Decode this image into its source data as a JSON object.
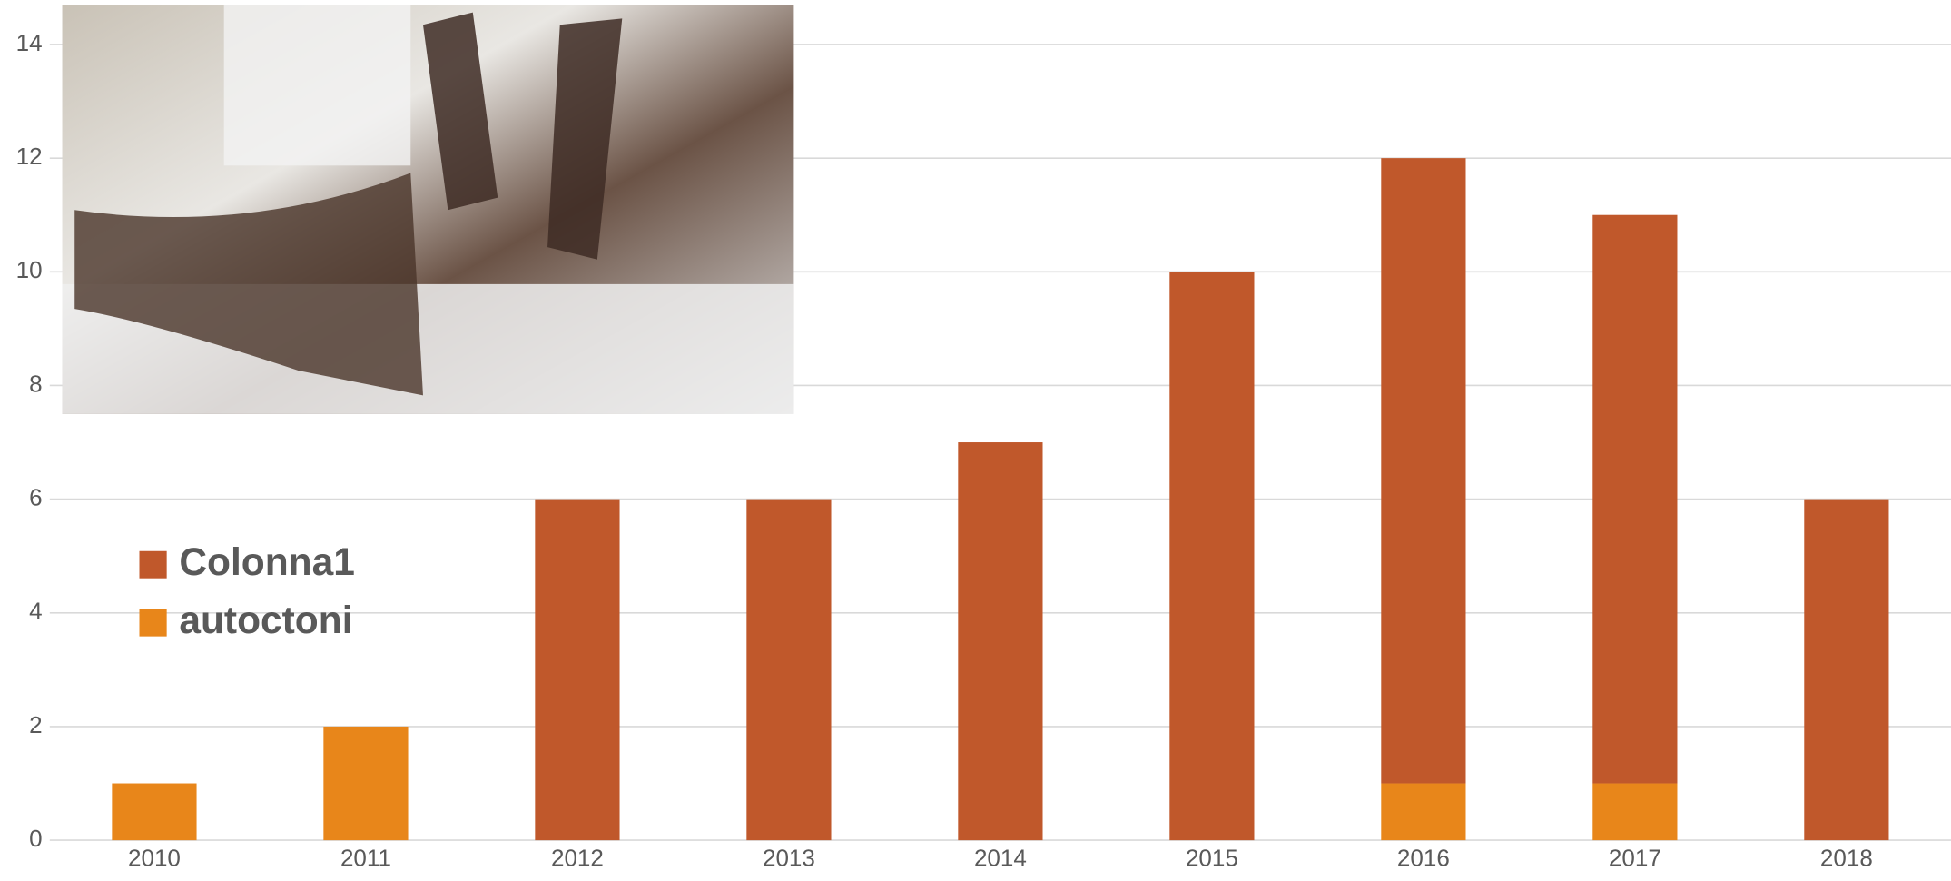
{
  "chart_data": {
    "type": "stacked_bar",
    "categories": [
      "2010",
      "2011",
      "2012",
      "2013",
      "2014",
      "2015",
      "2016",
      "2017",
      "2018"
    ],
    "series": [
      {
        "name": "autoctoni",
        "color": "#e8861a",
        "values": [
          1,
          2,
          0,
          0,
          0,
          0,
          1,
          1,
          0
        ]
      },
      {
        "name": "Colonna1",
        "color": "#c0582b",
        "values": [
          0,
          0,
          6,
          6,
          7,
          10,
          11,
          10,
          6
        ]
      }
    ],
    "ylim": [
      0,
      14
    ],
    "yticks": [
      0,
      2,
      4,
      6,
      8,
      10,
      12,
      14
    ],
    "grid": true,
    "legend": "left"
  }
}
